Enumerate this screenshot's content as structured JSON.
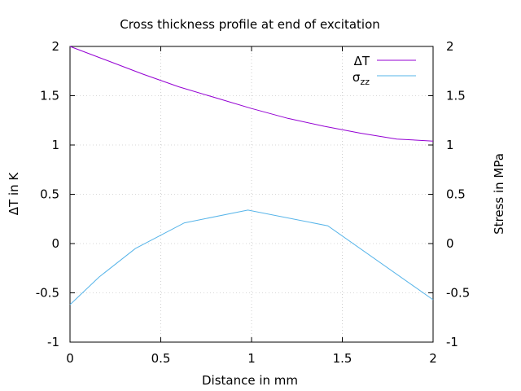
{
  "chart_data": {
    "type": "line",
    "title": "Cross thickness profile at end of excitation",
    "xlabel": "Distance in mm",
    "ylabel_left": "ΔT in K",
    "ylabel_right": "Stress in MPa",
    "xlim": [
      0,
      2
    ],
    "ylim_left": [
      -1,
      2
    ],
    "ylim_right": [
      -1,
      2
    ],
    "x_ticks": [
      0,
      0.5,
      1,
      1.5,
      2
    ],
    "x_tick_labels": [
      "0",
      "0.5",
      "1",
      "1.5",
      "2"
    ],
    "y_ticks": [
      -1,
      -0.5,
      0,
      0.5,
      1,
      1.5,
      2
    ],
    "y_tick_labels_left": [
      "-1",
      "-0.5",
      "0",
      "0.5",
      "1",
      "1.5",
      "2"
    ],
    "y_tick_labels_right": [
      "-1",
      "-0.5",
      "0",
      "0.5",
      "1",
      "1.5",
      "2"
    ],
    "grid": true,
    "legend_position": "top-right",
    "series": [
      {
        "name": "ΔT",
        "color": "#9400d3",
        "x": [
          0,
          0.2,
          0.4,
          0.6,
          0.8,
          1.0,
          1.2,
          1.4,
          1.6,
          1.7,
          1.8,
          2.0
        ],
        "y": [
          2.0,
          1.86,
          1.72,
          1.59,
          1.48,
          1.37,
          1.27,
          1.19,
          1.12,
          1.09,
          1.06,
          1.04
        ]
      },
      {
        "name": "σzz",
        "legend_main": "σ",
        "legend_sub": "zz",
        "color": "#56b4e9",
        "x": [
          0,
          0.16,
          0.36,
          0.63,
          0.98,
          1.42,
          2.0
        ],
        "y": [
          -0.62,
          -0.34,
          -0.05,
          0.21,
          0.34,
          0.18,
          -0.57
        ]
      }
    ]
  }
}
